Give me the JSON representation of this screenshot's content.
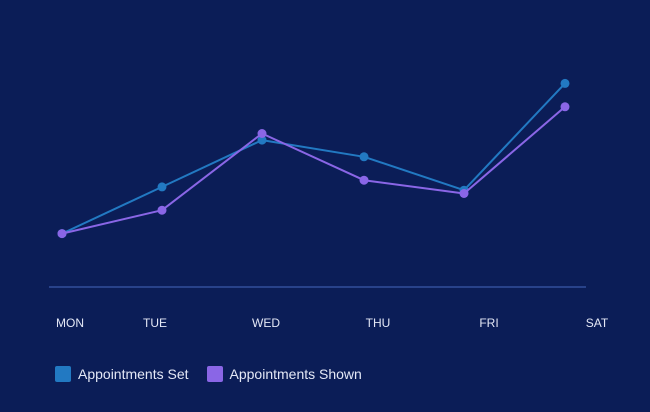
{
  "chart_data": {
    "type": "line",
    "categories": [
      "MON",
      "TUE",
      "WED",
      "THU",
      "FRI",
      "SAT"
    ],
    "series": [
      {
        "name": "Appointments Set",
        "color": "#2279c2",
        "values": [
          12,
          26,
          40,
          35,
          25,
          57
        ]
      },
      {
        "name": "Appointments Shown",
        "color": "#8a66e6",
        "values": [
          12,
          19,
          42,
          28,
          24,
          50
        ]
      }
    ],
    "title": "",
    "xlabel": "",
    "ylabel": "",
    "ylim": [
      -4,
      70
    ],
    "grid": false,
    "legend": "bottom-left"
  },
  "colors": {
    "background": "#0b1d57",
    "axis": "#3a5aa8",
    "text": "#e4e8f6"
  }
}
